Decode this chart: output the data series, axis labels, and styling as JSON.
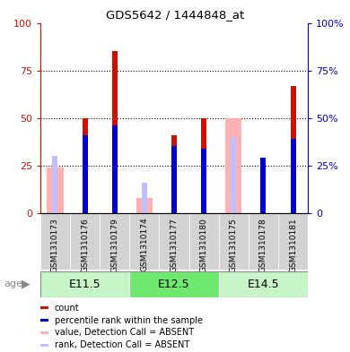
{
  "title": "GDS5642 / 1444848_at",
  "samples": [
    "GSM1310173",
    "GSM1310176",
    "GSM1310179",
    "GSM1310174",
    "GSM1310177",
    "GSM1310180",
    "GSM1310175",
    "GSM1310178",
    "GSM1310181"
  ],
  "age_groups": [
    {
      "label": "E11.5",
      "start": 0,
      "end": 3,
      "color": "#c8f5c8"
    },
    {
      "label": "E12.5",
      "start": 3,
      "end": 6,
      "color": "#6ee86e"
    },
    {
      "label": "E14.5",
      "start": 6,
      "end": 9,
      "color": "#c8f5c8"
    }
  ],
  "red_bars": [
    0,
    50,
    85,
    0,
    41,
    50,
    0,
    0,
    67
  ],
  "blue_bars": [
    0,
    41,
    46,
    0,
    35,
    34,
    0,
    29,
    39
  ],
  "pink_bars": [
    24,
    0,
    0,
    8,
    0,
    0,
    50,
    0,
    0
  ],
  "light_blue_bars": [
    30,
    0,
    0,
    16,
    0,
    0,
    40,
    0,
    0
  ],
  "red_color": "#cc1100",
  "blue_color": "#0000cc",
  "pink_color": "#ffb0b0",
  "light_blue_color": "#c0c0ff",
  "ylim": [
    0,
    100
  ],
  "yticks": [
    0,
    25,
    50,
    75,
    100
  ],
  "thin_bar_width": 0.18,
  "wide_bar_width": 0.55,
  "grid_color": "black",
  "sample_bg": "#d3d3d3",
  "left_axis_color": "#cc1100",
  "right_axis_color": "#0000cc",
  "legend_items": [
    {
      "color": "#cc1100",
      "label": "count"
    },
    {
      "color": "#0000cc",
      "label": "percentile rank within the sample"
    },
    {
      "color": "#ffb0b0",
      "label": "value, Detection Call = ABSENT"
    },
    {
      "color": "#c0c0ff",
      "label": "rank, Detection Call = ABSENT"
    }
  ]
}
